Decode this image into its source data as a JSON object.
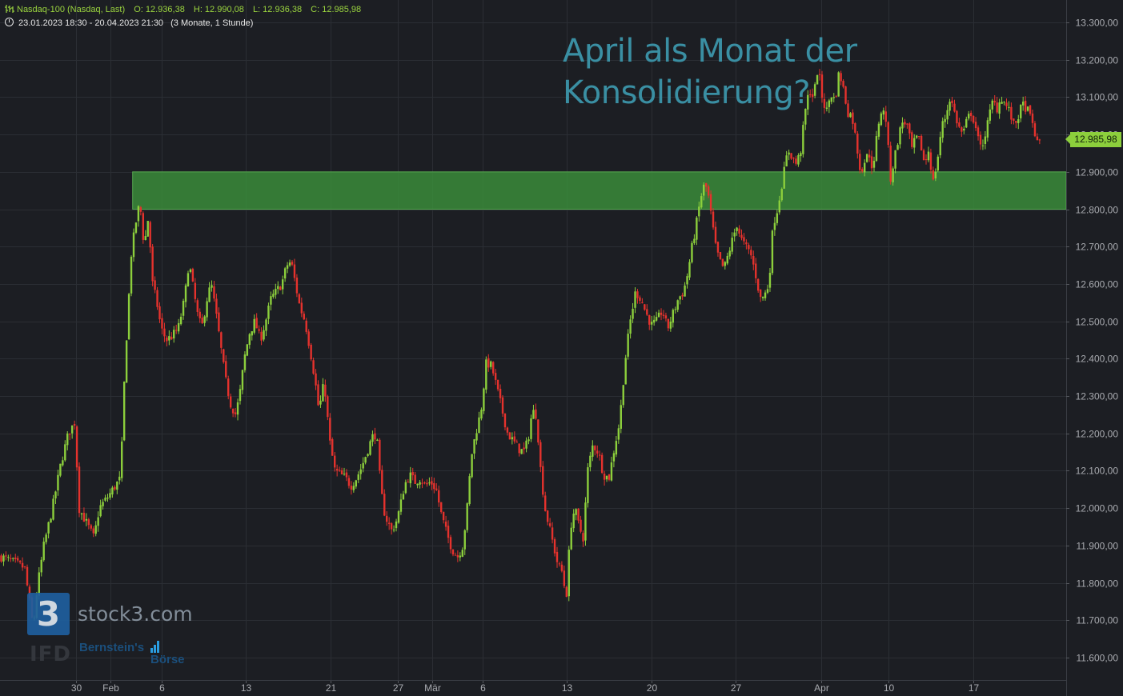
{
  "header": {
    "instrument": "Nasdaq-100 (Nasdaq, Last)",
    "open": "O: 12.936,38",
    "high": "H: 12.990,08",
    "low": "L: 12.936,38",
    "close": "C: 12.985,98",
    "range": "23.01.2023 18:30 - 20.04.2023 21:30",
    "timeframe": "(3 Monate, 1 Stunde)"
  },
  "headline": {
    "line1": "April als Monat der",
    "line2": "Konsolidierung?"
  },
  "watermark": {
    "brand": "stock3.com",
    "logo_number": "3",
    "partner_line1": "Bernstein's",
    "partner_line2": "Börse",
    "ifd": "IFD"
  },
  "last_price": "12.985,98",
  "colors": {
    "up": "#8ccf3c",
    "down": "#e5322d",
    "zone": "#3a8f3a",
    "headline": "#3a8fa3",
    "background": "#1c1e23"
  },
  "chart_data": {
    "type": "candlestick",
    "title": "",
    "ylim": [
      11540,
      13360
    ],
    "y_ticks": [
      13300,
      13200,
      13100,
      13000,
      12900,
      12800,
      12700,
      12600,
      12500,
      12400,
      12300,
      12200,
      12100,
      12000,
      11900,
      11800,
      11700,
      11600
    ],
    "y_tick_labels": [
      "13.300,00",
      "13.200,00",
      "13.100,00",
      "13.000,00",
      "12.900,00",
      "12.800,00",
      "12.700,00",
      "12.600,00",
      "12.500,00",
      "12.400,00",
      "12.300,00",
      "12.200,00",
      "12.100,00",
      "12.000,00",
      "11.900,00",
      "11.800,00",
      "11.700,00",
      "11.600,00"
    ],
    "x_ticks": [
      {
        "label": "30",
        "x": 0.0713
      },
      {
        "label": "Feb",
        "x": 0.1034
      },
      {
        "label": "6",
        "x": 0.1513
      },
      {
        "label": "13",
        "x": 0.2307
      },
      {
        "label": "21",
        "x": 0.3099
      },
      {
        "label": "27",
        "x": 0.373
      },
      {
        "label": "Mär",
        "x": 0.4054
      },
      {
        "label": "6",
        "x": 0.4527
      },
      {
        "label": "13",
        "x": 0.5315
      },
      {
        "label": "20",
        "x": 0.6109
      },
      {
        "label": "27",
        "x": 0.69
      },
      {
        "label": "Apr",
        "x": 0.7703
      },
      {
        "label": "10",
        "x": 0.8335
      },
      {
        "label": "17",
        "x": 0.9128
      }
    ],
    "zone": {
      "from": 12800,
      "to": 12900,
      "x_start": 0.1244
    },
    "path": [
      [
        0.0,
        11870
      ],
      [
        0.015,
        11850
      ],
      [
        0.022,
        11840
      ],
      [
        0.03,
        11680
      ],
      [
        0.034,
        11790
      ],
      [
        0.04,
        11900
      ],
      [
        0.048,
        12000
      ],
      [
        0.056,
        12120
      ],
      [
        0.063,
        12200
      ],
      [
        0.069,
        12230
      ],
      [
        0.073,
        12000
      ],
      [
        0.08,
        11960
      ],
      [
        0.087,
        11920
      ],
      [
        0.092,
        12000
      ],
      [
        0.1,
        12030
      ],
      [
        0.107,
        12060
      ],
      [
        0.112,
        12080
      ],
      [
        0.116,
        12380
      ],
      [
        0.122,
        12680
      ],
      [
        0.126,
        12760
      ],
      [
        0.13,
        12820
      ],
      [
        0.134,
        12700
      ],
      [
        0.138,
        12780
      ],
      [
        0.142,
        12600
      ],
      [
        0.146,
        12550
      ],
      [
        0.15,
        12480
      ],
      [
        0.155,
        12450
      ],
      [
        0.16,
        12460
      ],
      [
        0.166,
        12480
      ],
      [
        0.172,
        12560
      ],
      [
        0.176,
        12660
      ],
      [
        0.18,
        12590
      ],
      [
        0.184,
        12520
      ],
      [
        0.188,
        12480
      ],
      [
        0.193,
        12560
      ],
      [
        0.197,
        12600
      ],
      [
        0.201,
        12530
      ],
      [
        0.205,
        12450
      ],
      [
        0.21,
        12350
      ],
      [
        0.215,
        12280
      ],
      [
        0.22,
        12250
      ],
      [
        0.224,
        12310
      ],
      [
        0.228,
        12400
      ],
      [
        0.233,
        12470
      ],
      [
        0.238,
        12500
      ],
      [
        0.243,
        12450
      ],
      [
        0.248,
        12500
      ],
      [
        0.253,
        12560
      ],
      [
        0.258,
        12580
      ],
      [
        0.263,
        12600
      ],
      [
        0.268,
        12650
      ],
      [
        0.272,
        12660
      ],
      [
        0.276,
        12600
      ],
      [
        0.28,
        12540
      ],
      [
        0.285,
        12500
      ],
      [
        0.29,
        12420
      ],
      [
        0.294,
        12350
      ],
      [
        0.298,
        12260
      ],
      [
        0.303,
        12340
      ],
      [
        0.308,
        12180
      ],
      [
        0.313,
        12100
      ],
      [
        0.318,
        12090
      ],
      [
        0.323,
        12080
      ],
      [
        0.328,
        12060
      ],
      [
        0.333,
        12080
      ],
      [
        0.338,
        12110
      ],
      [
        0.343,
        12150
      ],
      [
        0.348,
        12190
      ],
      [
        0.352,
        12200
      ],
      [
        0.356,
        12050
      ],
      [
        0.36,
        11980
      ],
      [
        0.366,
        11940
      ],
      [
        0.37,
        11960
      ],
      [
        0.374,
        12000
      ],
      [
        0.378,
        12060
      ],
      [
        0.383,
        12090
      ],
      [
        0.388,
        12070
      ],
      [
        0.393,
        12080
      ],
      [
        0.398,
        12060
      ],
      [
        0.403,
        12070
      ],
      [
        0.408,
        12050
      ],
      [
        0.413,
        11980
      ],
      [
        0.418,
        11930
      ],
      [
        0.423,
        11890
      ],
      [
        0.428,
        11870
      ],
      [
        0.433,
        11900
      ],
      [
        0.437,
        12000
      ],
      [
        0.441,
        12140
      ],
      [
        0.445,
        12200
      ],
      [
        0.45,
        12260
      ],
      [
        0.455,
        12390
      ],
      [
        0.46,
        12380
      ],
      [
        0.465,
        12320
      ],
      [
        0.47,
        12260
      ],
      [
        0.475,
        12200
      ],
      [
        0.48,
        12180
      ],
      [
        0.485,
        12160
      ],
      [
        0.49,
        12150
      ],
      [
        0.494,
        12180
      ],
      [
        0.498,
        12260
      ],
      [
        0.502,
        12250
      ],
      [
        0.506,
        12100
      ],
      [
        0.51,
        12000
      ],
      [
        0.514,
        11950
      ],
      [
        0.518,
        11900
      ],
      [
        0.522,
        11850
      ],
      [
        0.526,
        11830
      ],
      [
        0.53,
        11760
      ],
      [
        0.534,
        11950
      ],
      [
        0.538,
        12000
      ],
      [
        0.542,
        11950
      ],
      [
        0.546,
        11920
      ],
      [
        0.55,
        12100
      ],
      [
        0.555,
        12170
      ],
      [
        0.56,
        12150
      ],
      [
        0.565,
        12090
      ],
      [
        0.57,
        12080
      ],
      [
        0.575,
        12160
      ],
      [
        0.58,
        12230
      ],
      [
        0.585,
        12390
      ],
      [
        0.59,
        12500
      ],
      [
        0.595,
        12580
      ],
      [
        0.6,
        12560
      ],
      [
        0.605,
        12520
      ],
      [
        0.61,
        12490
      ],
      [
        0.615,
        12500
      ],
      [
        0.62,
        12530
      ],
      [
        0.625,
        12480
      ],
      [
        0.63,
        12520
      ],
      [
        0.635,
        12560
      ],
      [
        0.64,
        12580
      ],
      [
        0.644,
        12630
      ],
      [
        0.648,
        12700
      ],
      [
        0.652,
        12760
      ],
      [
        0.656,
        12830
      ],
      [
        0.66,
        12870
      ],
      [
        0.663,
        12840
      ],
      [
        0.666,
        12780
      ],
      [
        0.67,
        12700
      ],
      [
        0.674,
        12660
      ],
      [
        0.678,
        12640
      ],
      [
        0.682,
        12680
      ],
      [
        0.686,
        12720
      ],
      [
        0.69,
        12760
      ],
      [
        0.694,
        12720
      ],
      [
        0.698,
        12700
      ],
      [
        0.703,
        12680
      ],
      [
        0.708,
        12620
      ],
      [
        0.712,
        12560
      ],
      [
        0.716,
        12570
      ],
      [
        0.72,
        12600
      ],
      [
        0.724,
        12760
      ],
      [
        0.728,
        12800
      ],
      [
        0.733,
        12880
      ],
      [
        0.738,
        12960
      ],
      [
        0.742,
        12940
      ],
      [
        0.746,
        12920
      ],
      [
        0.75,
        12960
      ],
      [
        0.754,
        13060
      ],
      [
        0.758,
        13120
      ],
      [
        0.762,
        13100
      ],
      [
        0.766,
        13180
      ],
      [
        0.77,
        13100
      ],
      [
        0.774,
        13060
      ],
      [
        0.778,
        13110
      ],
      [
        0.782,
        13090
      ],
      [
        0.786,
        13170
      ],
      [
        0.79,
        13120
      ],
      [
        0.794,
        13060
      ],
      [
        0.798,
        13050
      ],
      [
        0.802,
        12980
      ],
      [
        0.806,
        12900
      ],
      [
        0.81,
        12930
      ],
      [
        0.814,
        12950
      ],
      [
        0.818,
        12900
      ],
      [
        0.822,
        13020
      ],
      [
        0.826,
        13070
      ],
      [
        0.83,
        13040
      ],
      [
        0.834,
        12880
      ],
      [
        0.838,
        12940
      ],
      [
        0.842,
        13000
      ],
      [
        0.846,
        13040
      ],
      [
        0.85,
        13020
      ],
      [
        0.854,
        12960
      ],
      [
        0.858,
        12990
      ],
      [
        0.862,
        12980
      ],
      [
        0.866,
        12920
      ],
      [
        0.87,
        12960
      ],
      [
        0.874,
        12870
      ],
      [
        0.878,
        12930
      ],
      [
        0.882,
        13020
      ],
      [
        0.886,
        13050
      ],
      [
        0.89,
        13100
      ],
      [
        0.894,
        13060
      ],
      [
        0.898,
        13020
      ],
      [
        0.902,
        13000
      ],
      [
        0.906,
        13040
      ],
      [
        0.91,
        13060
      ],
      [
        0.914,
        13020
      ],
      [
        0.918,
        12960
      ],
      [
        0.922,
        12990
      ],
      [
        0.926,
        13040
      ],
      [
        0.93,
        13090
      ],
      [
        0.934,
        13070
      ],
      [
        0.938,
        13100
      ],
      [
        0.942,
        13080
      ],
      [
        0.946,
        13060
      ],
      [
        0.95,
        13020
      ],
      [
        0.954,
        13050
      ],
      [
        0.958,
        13080
      ],
      [
        0.962,
        13070
      ],
      [
        0.966,
        13040
      ],
      [
        0.97,
        13000
      ],
      [
        0.974,
        12940
      ]
    ],
    "last": 12985.98
  }
}
